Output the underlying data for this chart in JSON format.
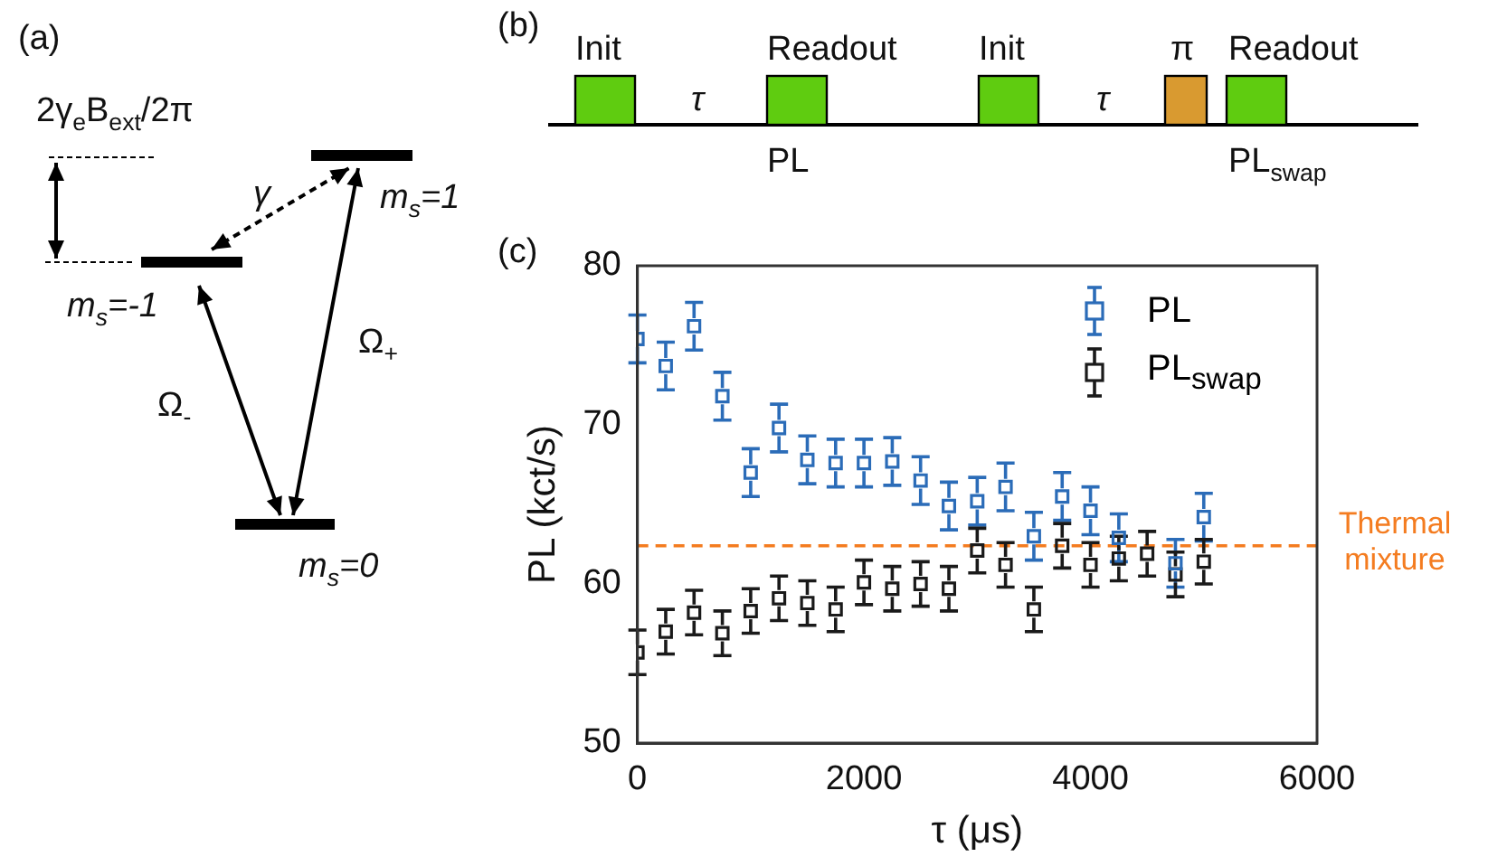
{
  "chart_data": [
    {
      "type": "other",
      "annotations": [
        "(a)",
        "2γ$_{e}$B$_{ext}$/2π",
        "γ",
        "m$_{s}$=1",
        "m$_{s}$=-1",
        "Ω$_{-}$",
        "Ω$_{+}$",
        "m$_{s}$=0"
      ]
    },
    {
      "type": "other",
      "annotations": [
        "(b)",
        "Init",
        "τ",
        "Readout",
        "PL",
        "Init",
        "τ",
        "π",
        "Readout",
        "PL$_{swap}$"
      ]
    },
    {
      "type": "scatter",
      "annotations": [
        "(c)"
      ],
      "xlabel": "τ (μs)",
      "ylabel": "PL (kct/s)",
      "x": [
        0,
        250,
        500,
        750,
        1000,
        1250,
        1500,
        1750,
        2000,
        2250,
        2500,
        2750,
        3000,
        3250,
        3500,
        3750,
        4000,
        4250,
        4500,
        4750,
        5000
      ],
      "series": [
        {
          "name": "PL",
          "color": "#2b6cb8",
          "values": [
            75.4,
            73.7,
            76.2,
            71.8,
            67.0,
            69.8,
            67.8,
            67.6,
            67.6,
            67.7,
            66.5,
            64.9,
            65.2,
            66.1,
            63.0,
            65.5,
            64.6,
            62.9,
            null,
            61.3,
            64.2
          ],
          "errors": [
            1.5,
            1.5,
            1.5,
            1.5,
            1.5,
            1.5,
            1.5,
            1.5,
            1.5,
            1.5,
            1.5,
            1.5,
            1.5,
            1.5,
            1.5,
            1.5,
            1.5,
            1.5,
            null,
            1.5,
            1.5
          ]
        },
        {
          "name": "PL$_{swap}$",
          "color": "#1a1a1a",
          "values": [
            55.7,
            57.0,
            58.2,
            56.9,
            58.3,
            59.1,
            58.8,
            58.4,
            60.1,
            59.7,
            60.0,
            59.7,
            62.1,
            61.2,
            58.4,
            62.4,
            61.2,
            61.6,
            61.9,
            60.6,
            61.4
          ],
          "errors": [
            1.4,
            1.4,
            1.4,
            1.4,
            1.4,
            1.4,
            1.4,
            1.4,
            1.4,
            1.4,
            1.4,
            1.4,
            1.4,
            1.4,
            1.4,
            1.4,
            1.4,
            1.4,
            1.4,
            1.4,
            1.4
          ]
        }
      ],
      "xlim": [
        0,
        6000
      ],
      "xticks": [
        0,
        2000,
        4000,
        6000
      ],
      "ylim": [
        50,
        80
      ],
      "yticks": [
        50,
        60,
        70,
        80
      ],
      "ref_lines": [
        {
          "axis": "y",
          "value": 62.4,
          "label": "Thermal mixture",
          "color": "#f47c20",
          "line_style": "dashed"
        }
      ],
      "marker": "square",
      "legend": "top right",
      "grid": false
    }
  ]
}
